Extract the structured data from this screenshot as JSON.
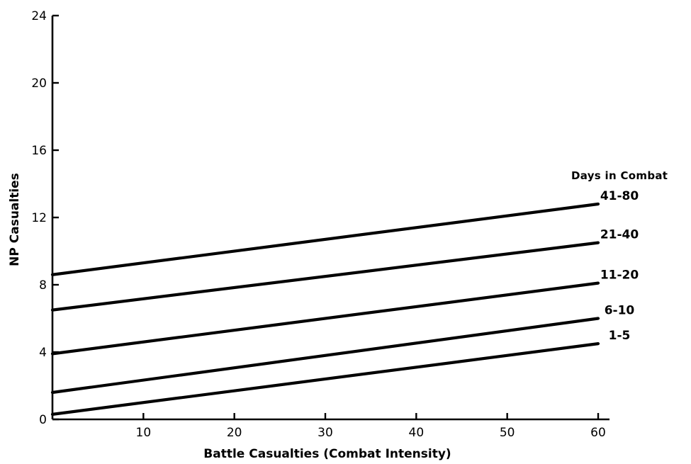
{
  "chart_data": {
    "type": "line",
    "title": "",
    "xlabel": "Battle Casualties (Combat Intensity)",
    "ylabel": "NP Casualties",
    "xlim": [
      0,
      60
    ],
    "ylim": [
      0,
      24
    ],
    "x_ticks": [
      10,
      20,
      30,
      40,
      50,
      60
    ],
    "y_ticks": [
      0,
      4,
      8,
      12,
      16,
      20,
      24
    ],
    "grid": false,
    "legend_title": "Days in Combat",
    "legend_placement": "right",
    "series": [
      {
        "name": "41-80",
        "x": [
          0,
          60
        ],
        "y": [
          8.6,
          12.8
        ]
      },
      {
        "name": "21-40",
        "x": [
          0,
          60
        ],
        "y": [
          6.5,
          10.5
        ]
      },
      {
        "name": "11-20",
        "x": [
          0,
          60
        ],
        "y": [
          3.9,
          8.1
        ]
      },
      {
        "name": "6-10",
        "x": [
          0,
          60
        ],
        "y": [
          1.6,
          6.0
        ]
      },
      {
        "name": "1-5",
        "x": [
          0,
          60
        ],
        "y": [
          0.3,
          4.5
        ]
      }
    ]
  }
}
